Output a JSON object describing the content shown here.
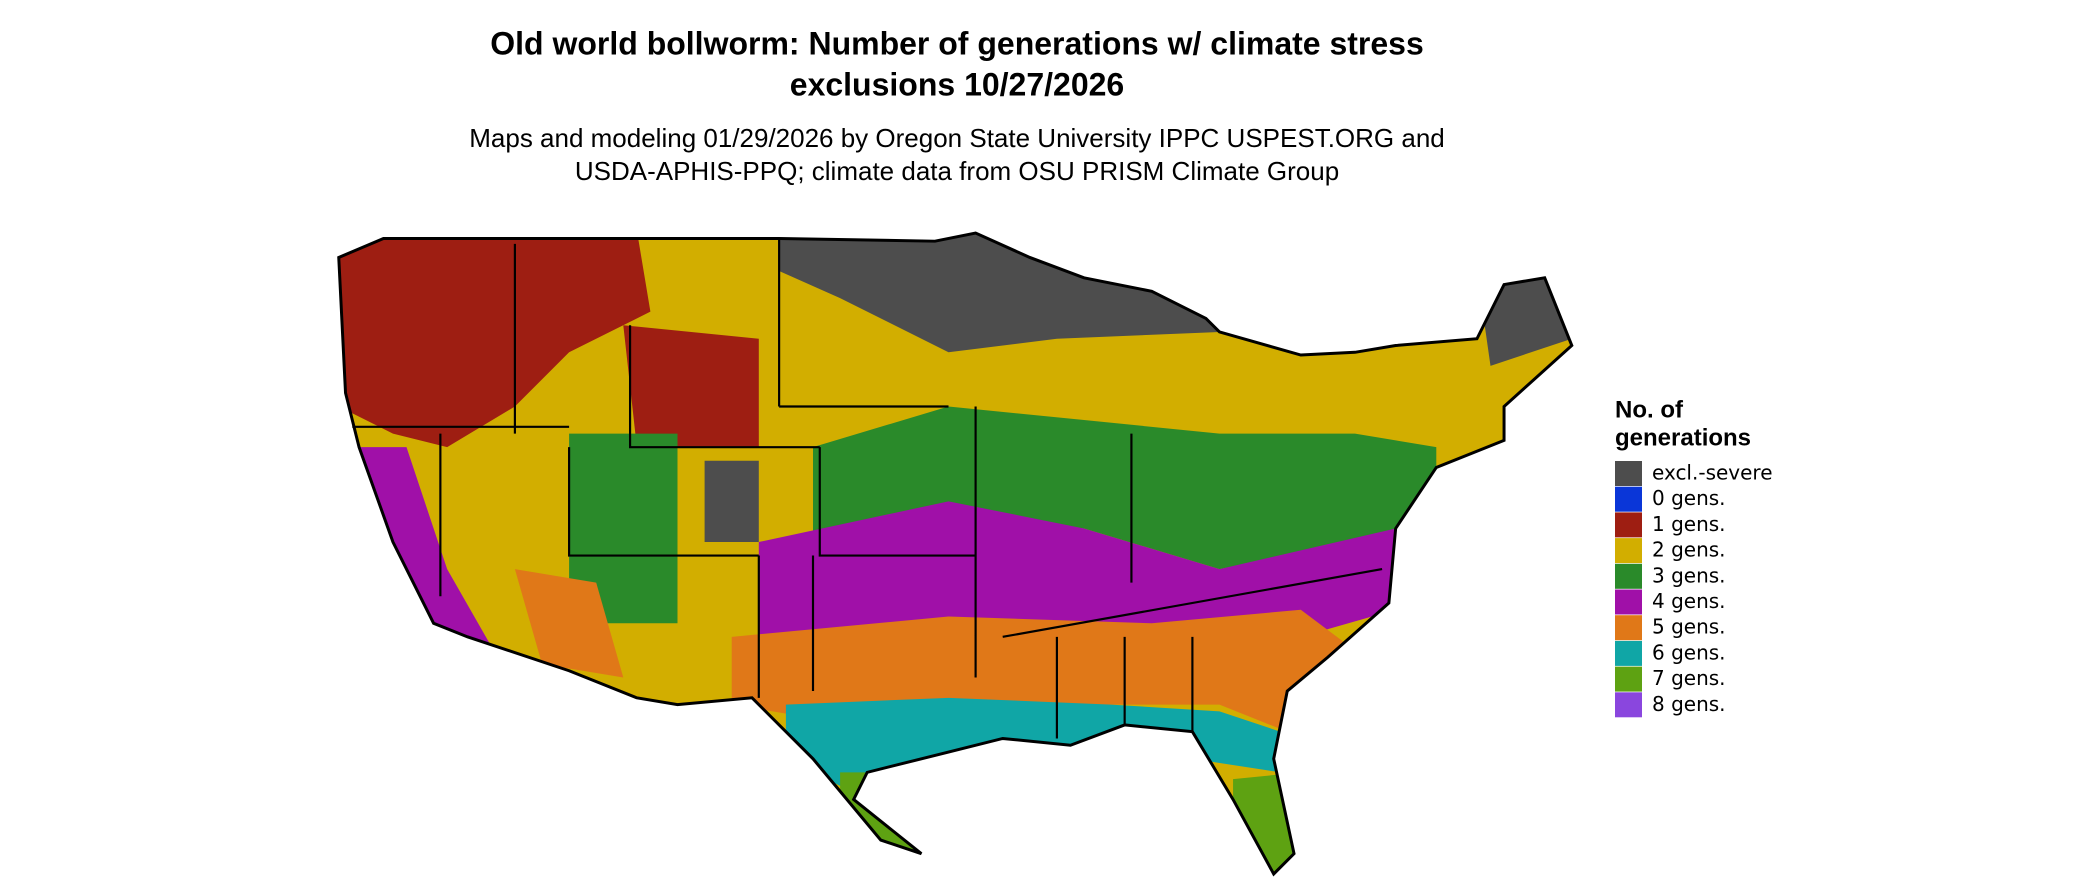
{
  "title": [
    "Old world bollworm: Number of generations w/ climate stress",
    "exclusions 10/27/2026"
  ],
  "subtitle": [
    "Maps and modeling 01/29/2026 by Oregon State University IPPC USPEST.ORG and",
    "USDA-APHIS-PPQ; climate data from OSU PRISM Climate Group"
  ],
  "legend": {
    "title": [
      "No. of",
      "generations"
    ],
    "items": [
      {
        "label": "excl.-severe",
        "color": "#4d4d4d"
      },
      {
        "label": "0 gens.",
        "color": "#0a36d8"
      },
      {
        "label": "1 gens.",
        "color": "#9e1e12"
      },
      {
        "label": "2 gens.",
        "color": "#d2ae00"
      },
      {
        "label": "3 gens.",
        "color": "#2a8a2a"
      },
      {
        "label": "4 gens.",
        "color": "#a010a8"
      },
      {
        "label": "5 gens.",
        "color": "#e07818"
      },
      {
        "label": "6 gens.",
        "color": "#10a6a6"
      },
      {
        "label": "7 gens.",
        "color": "#5ea212"
      },
      {
        "label": "8 gens.",
        "color": "#8a46de"
      }
    ]
  }
}
